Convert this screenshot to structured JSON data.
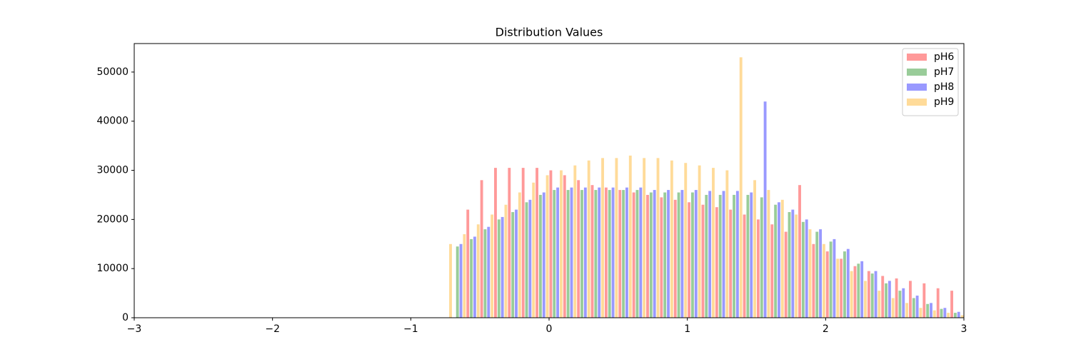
{
  "chart_data": {
    "type": "histogram",
    "title": "Distribution Values",
    "bins": [
      -0.8,
      -0.7,
      -0.6,
      -0.5,
      -0.4,
      -0.3,
      -0.2,
      -0.1,
      0,
      0.1,
      0.2,
      0.3,
      0.4,
      0.5,
      0.6,
      0.7,
      0.8,
      0.9,
      1.0,
      1.1,
      1.2,
      1.3,
      1.4,
      1.5,
      1.6,
      1.7,
      1.8,
      1.9,
      2.0,
      2.1,
      2.2,
      2.3,
      2.4,
      2.5,
      2.6,
      2.7,
      2.8,
      2.9,
      3.0
    ],
    "series": [
      {
        "name": "pH6",
        "color": "#ff0000",
        "values": [
          0,
          0,
          22000,
          28000,
          30500,
          30500,
          30500,
          30500,
          30000,
          29000,
          28000,
          27000,
          26500,
          26000,
          25500,
          25000,
          24500,
          24000,
          23500,
          23000,
          22500,
          22000,
          21000,
          20000,
          19000,
          17500,
          27000,
          15000,
          13500,
          12000,
          10500,
          9500,
          8500,
          8000,
          7500,
          7000,
          6000,
          5500
        ]
      },
      {
        "name": "pH7",
        "color": "#008000",
        "values": [
          0,
          14500,
          16000,
          18000,
          20000,
          21500,
          23500,
          25000,
          26000,
          26000,
          26000,
          26000,
          26000,
          26000,
          26000,
          25500,
          25500,
          25500,
          25500,
          25000,
          25000,
          25000,
          25000,
          24500,
          23000,
          21500,
          19500,
          17500,
          15500,
          13500,
          11000,
          9000,
          7000,
          5500,
          4000,
          2800,
          1800,
          1000
        ]
      },
      {
        "name": "pH8",
        "color": "#0000ff",
        "values": [
          0,
          15000,
          16500,
          18500,
          20500,
          22000,
          24000,
          25500,
          26500,
          26500,
          26500,
          26500,
          26500,
          26500,
          26500,
          26000,
          26000,
          26000,
          26000,
          25800,
          25800,
          25800,
          25500,
          44000,
          23500,
          22000,
          20000,
          18000,
          16000,
          14000,
          11500,
          9500,
          7500,
          6000,
          4500,
          3000,
          2000,
          1200
        ]
      },
      {
        "name": "pH9",
        "color": "#ffa500",
        "values": [
          15000,
          17000,
          19000,
          21000,
          23000,
          25500,
          27500,
          29000,
          30000,
          31000,
          32000,
          32500,
          32500,
          33000,
          32500,
          32500,
          32000,
          31500,
          31000,
          30500,
          30000,
          53000,
          28000,
          26000,
          24000,
          21000,
          18000,
          15000,
          12000,
          9500,
          7500,
          5500,
          4000,
          3000,
          2000,
          1500,
          1000,
          500
        ]
      }
    ],
    "alpha": 0.4,
    "xlim": [
      -3,
      3
    ],
    "xticks": [
      {
        "value": -3,
        "label": "−3"
      },
      {
        "value": -2,
        "label": "−2"
      },
      {
        "value": -1,
        "label": "−1"
      },
      0,
      1,
      2,
      3
    ],
    "ylim": [
      0,
      55800
    ],
    "yticks": [
      0,
      10000,
      20000,
      30000,
      40000,
      50000
    ],
    "legend": "upper right"
  }
}
